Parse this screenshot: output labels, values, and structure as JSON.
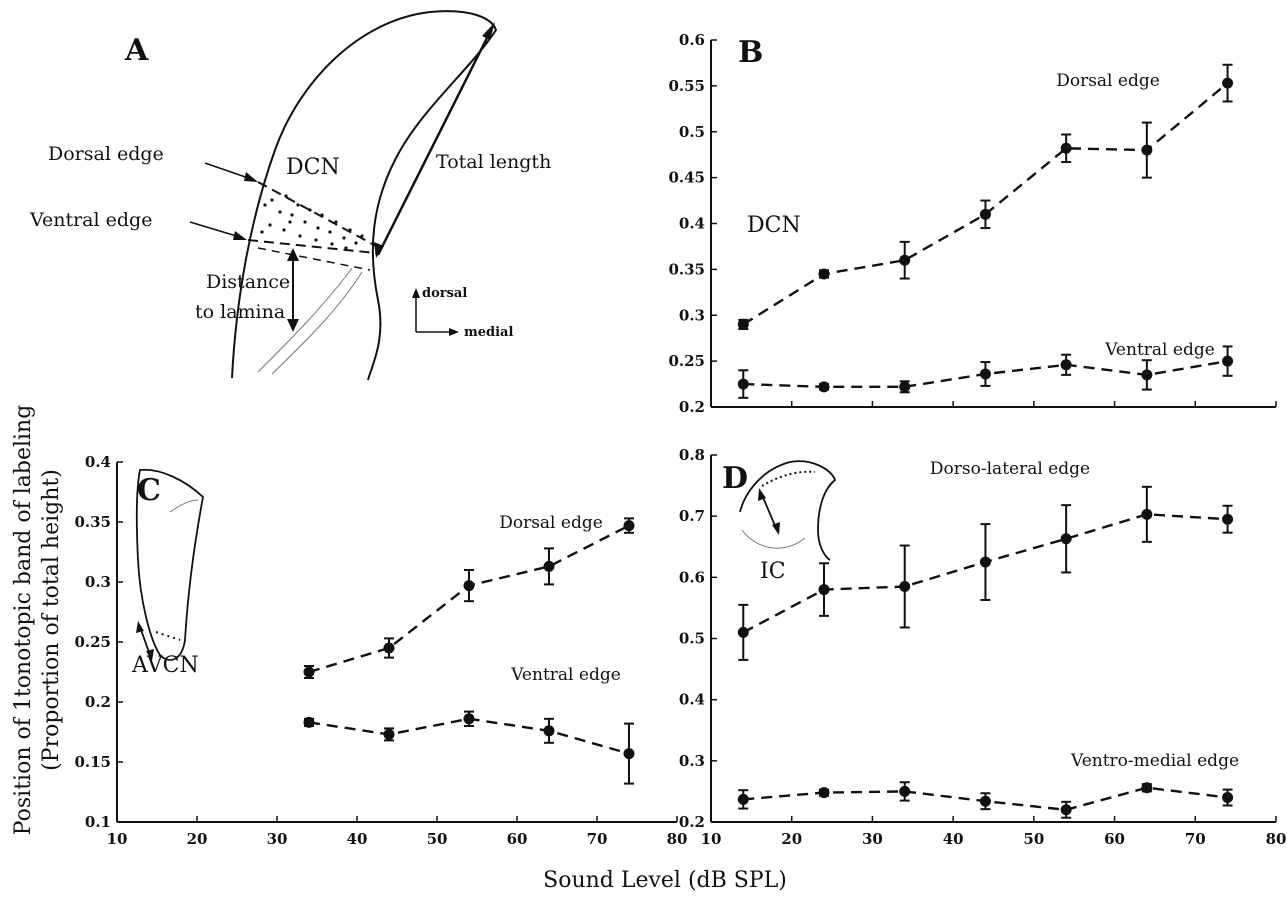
{
  "figure": {
    "ylabel_line1": "Position of 1tonotopic band of labeling",
    "ylabel_line2": "(Proportion of total height)",
    "xlabel": "Sound Level (dB SPL)"
  },
  "panel_a": {
    "letter": "A",
    "region": "DCN",
    "dorsal_edge": "Dorsal edge",
    "ventral_edge": "Ventral edge",
    "total_length": "Total length",
    "distance_line1": "Distance",
    "distance_line2": "to lamina",
    "compass_dorsal": "dorsal",
    "compass_medial": "medial"
  },
  "chart_data": [
    {
      "id": "B",
      "type": "line",
      "panel_label": "B",
      "region_label": "DCN",
      "x": [
        14,
        24,
        34,
        44,
        54,
        64,
        74
      ],
      "xlim": [
        10,
        80
      ],
      "ylim": [
        0.2,
        0.6
      ],
      "yticks": [
        0.2,
        0.25,
        0.3,
        0.35,
        0.4,
        0.45,
        0.5,
        0.55,
        0.6
      ],
      "ytick_labels": [
        "0.2",
        "0.25",
        "0.3",
        "0.35",
        "0.4",
        "0.45",
        "0.5",
        "0.55",
        "0.6"
      ],
      "xticks": [],
      "xtick_labels": [],
      "series": [
        {
          "name": "Dorsal edge",
          "values": [
            0.29,
            0.345,
            0.36,
            0.41,
            0.482,
            0.48,
            0.553
          ],
          "errors": [
            0.005,
            0.004,
            0.02,
            0.015,
            0.015,
            0.03,
            0.02
          ]
        },
        {
          "name": "Ventral edge",
          "values": [
            0.225,
            0.222,
            0.222,
            0.236,
            0.246,
            0.235,
            0.25
          ],
          "errors": [
            0.015,
            0.003,
            0.006,
            0.013,
            0.011,
            0.016,
            0.016
          ]
        }
      ]
    },
    {
      "id": "C",
      "type": "line",
      "panel_label": "C",
      "region_label": "AVCN",
      "x": [
        34,
        44,
        54,
        64,
        74
      ],
      "xlim": [
        10,
        80
      ],
      "ylim": [
        0.1,
        0.4
      ],
      "yticks": [
        0.1,
        0.15,
        0.2,
        0.25,
        0.3,
        0.35,
        0.4
      ],
      "ytick_labels": [
        "0.1",
        "0.15",
        "0.2",
        "0.25",
        "0.3",
        "0.35",
        "0.4"
      ],
      "xticks": [
        10,
        20,
        30,
        40,
        50,
        60,
        70,
        80
      ],
      "xtick_labels": [
        "10",
        "20",
        "30",
        "40",
        "50",
        "60",
        "70",
        "80"
      ],
      "series": [
        {
          "name": "Dorsal edge",
          "values": [
            0.225,
            0.245,
            0.297,
            0.313,
            0.347
          ],
          "errors": [
            0.005,
            0.008,
            0.013,
            0.015,
            0.006
          ]
        },
        {
          "name": "Ventral edge",
          "values": [
            0.183,
            0.173,
            0.186,
            0.176,
            0.157
          ],
          "errors": [
            0.003,
            0.005,
            0.006,
            0.01,
            0.025
          ]
        }
      ]
    },
    {
      "id": "D",
      "type": "line",
      "panel_label": "D",
      "region_label": "IC",
      "x": [
        14,
        24,
        34,
        44,
        54,
        64,
        74
      ],
      "xlim": [
        10,
        80
      ],
      "ylim": [
        0.2,
        0.8
      ],
      "yticks": [
        0.2,
        0.3,
        0.4,
        0.5,
        0.6,
        0.7,
        0.8
      ],
      "ytick_labels": [
        "0.2",
        "0.3",
        "0.4",
        "0.5",
        "0.6",
        "0.7",
        "0.8"
      ],
      "xticks": [
        10,
        20,
        30,
        40,
        50,
        60,
        70,
        80
      ],
      "xtick_labels": [
        "10",
        "20",
        "30",
        "40",
        "50",
        "60",
        "70",
        "80"
      ],
      "series": [
        {
          "name": "Dorso-lateral edge",
          "values": [
            0.51,
            0.58,
            0.585,
            0.625,
            0.663,
            0.703,
            0.695
          ],
          "errors": [
            0.045,
            0.043,
            0.067,
            0.062,
            0.055,
            0.045,
            0.022
          ]
        },
        {
          "name": "Ventro-medial edge",
          "values": [
            0.237,
            0.248,
            0.25,
            0.234,
            0.22,
            0.256,
            0.24
          ],
          "errors": [
            0.015,
            0.005,
            0.015,
            0.013,
            0.013,
            0.006,
            0.013
          ]
        }
      ]
    }
  ]
}
